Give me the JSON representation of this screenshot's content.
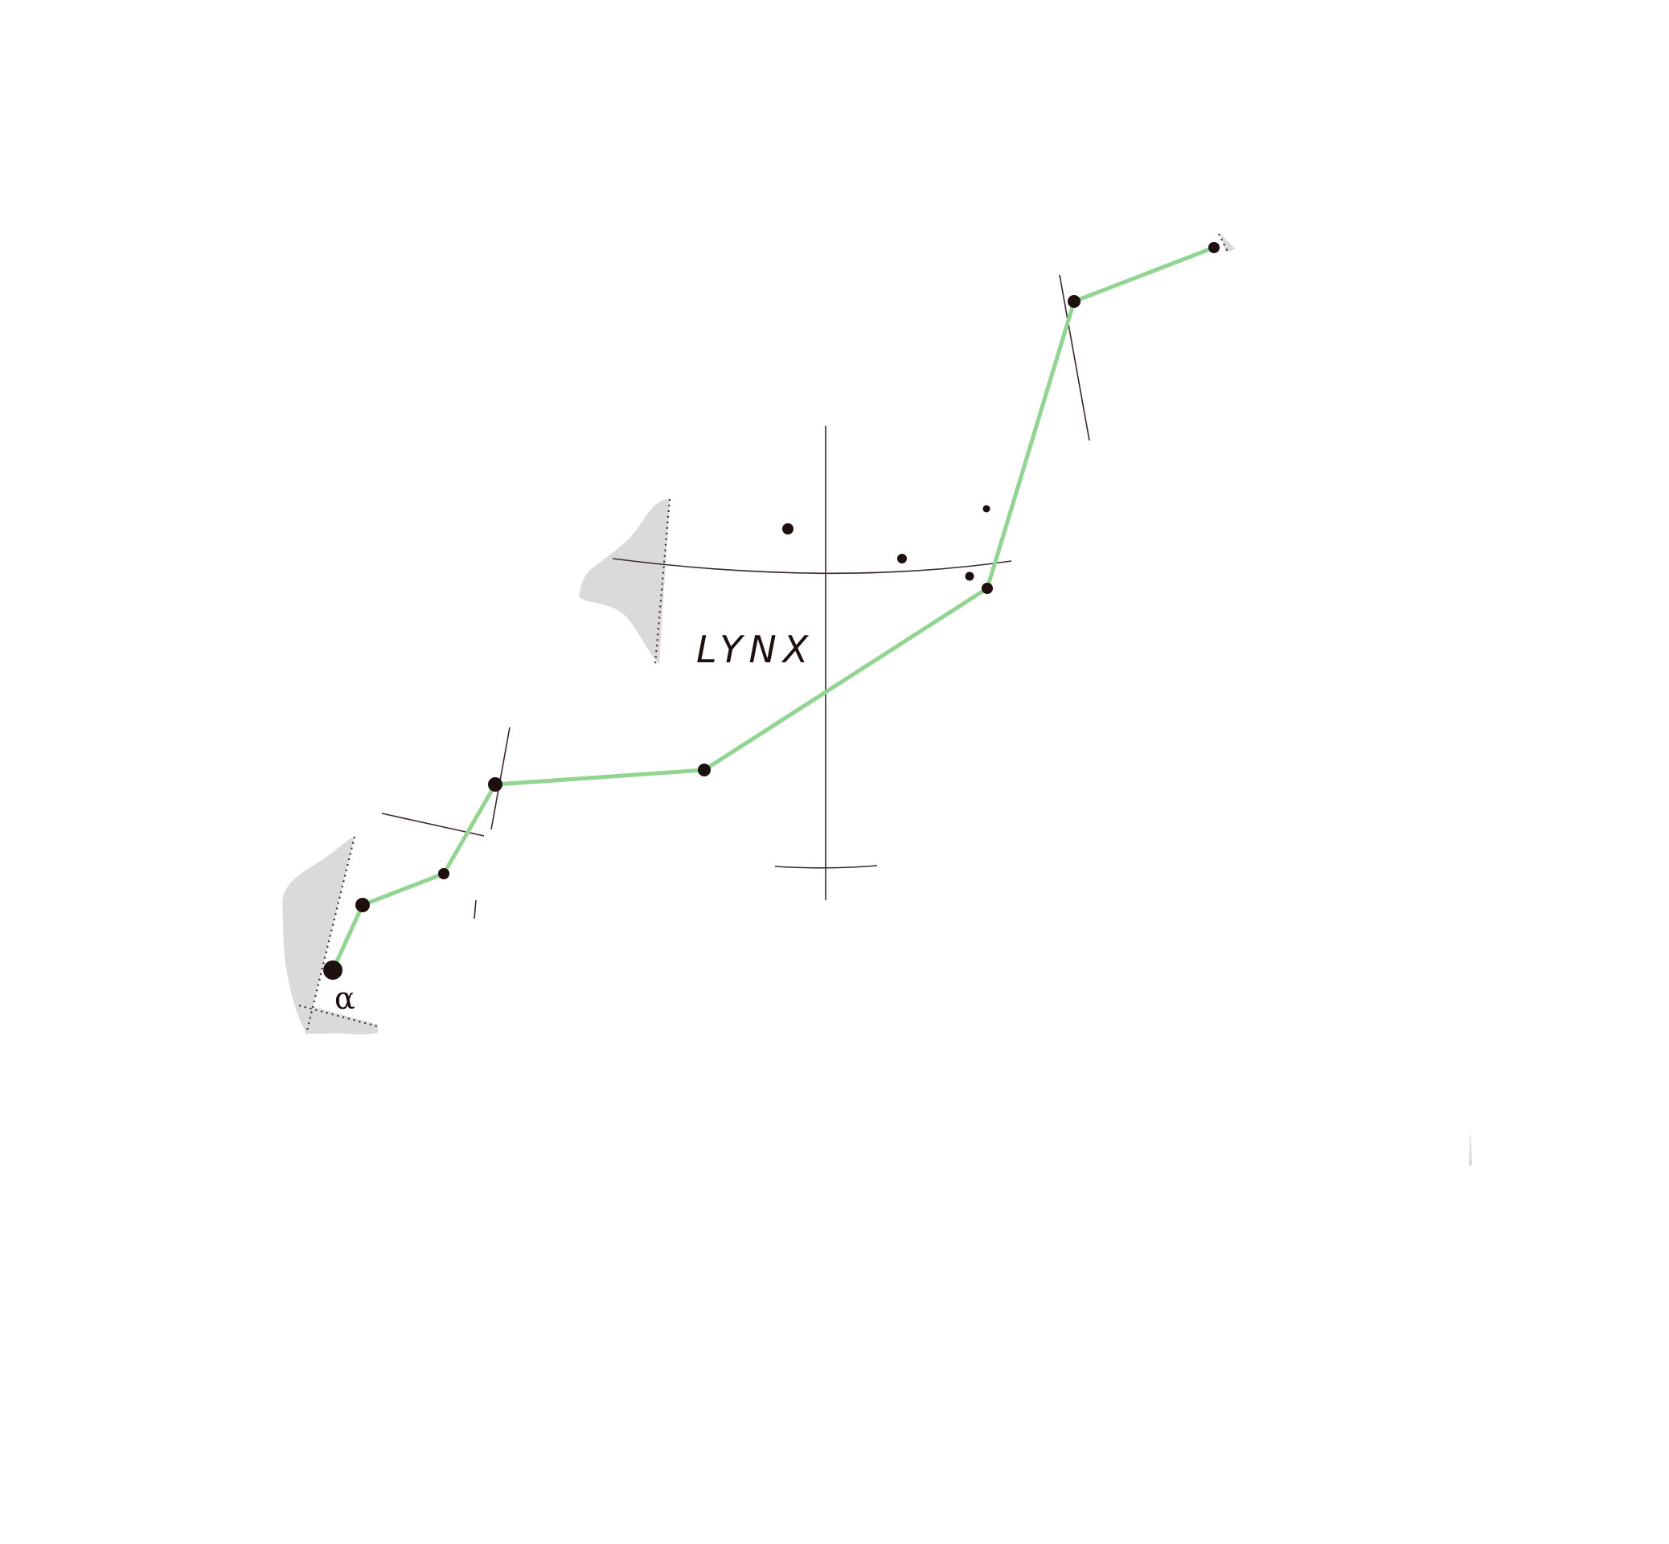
{
  "map": {
    "constellation_name": "LYNX",
    "star_label_alpha": "α",
    "colors": {
      "background": "#ffffff",
      "stick_figure": "#92d491",
      "star": "#1e0f0f",
      "grid_line": "#3a2a2a",
      "neighbor_fill": "#dcd9d9",
      "boundary": "#3a2a2a"
    },
    "stars": [
      {
        "name": "alpha",
        "magnitude_class": "bright"
      },
      {
        "name": "38-lyncis",
        "magnitude_class": "medium"
      },
      {
        "name": "31-lyncis",
        "magnitude_class": "medium"
      },
      {
        "name": "21-lyncis",
        "magnitude_class": "medium"
      },
      {
        "name": "15-lyncis",
        "magnitude_class": "medium"
      },
      {
        "name": "2-lyncis",
        "magnitude_class": "medium"
      },
      {
        "name": "upper-star-1",
        "magnitude_class": "medium"
      },
      {
        "name": "upper-star-2",
        "magnitude_class": "medium"
      },
      {
        "name": "faint-star-1",
        "magnitude_class": "faint"
      },
      {
        "name": "faint-star-2",
        "magnitude_class": "faint"
      },
      {
        "name": "faint-star-3",
        "magnitude_class": "faint"
      },
      {
        "name": "faint-star-4",
        "magnitude_class": "faint"
      }
    ]
  }
}
